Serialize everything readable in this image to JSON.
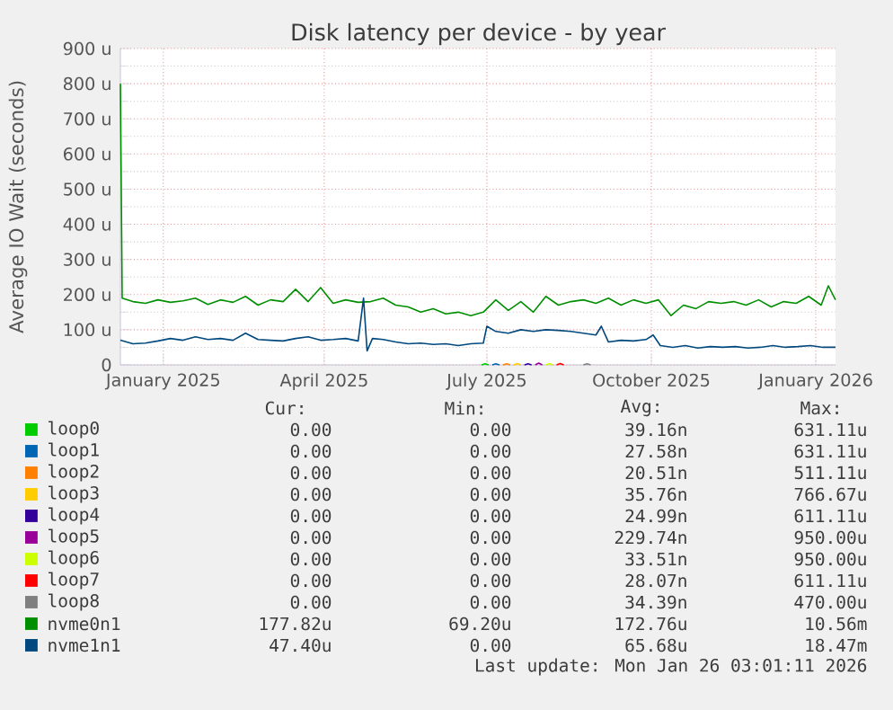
{
  "chart_data": {
    "type": "line",
    "title": "Disk latency per device - by year",
    "ylabel": "Average IO Wait (seconds)",
    "xlim": [
      "2024-12-08",
      "2026-01-12"
    ],
    "xticks": [
      {
        "value": "2025-01-01",
        "label": "January 2025"
      },
      {
        "value": "2025-04-01",
        "label": "April 2025"
      },
      {
        "value": "2025-07-01",
        "label": "July 2025"
      },
      {
        "value": "2025-10-01",
        "label": "October 2025"
      },
      {
        "value": "2026-01-01",
        "label": "January 2026"
      }
    ],
    "ylim": [
      0,
      900
    ],
    "yticks": [
      0,
      {
        "value": 100,
        "label": "100 u"
      },
      {
        "value": 200,
        "label": "200 u"
      },
      {
        "value": 300,
        "label": "300 u"
      },
      {
        "value": 400,
        "label": "400 u"
      },
      {
        "value": 500,
        "label": "500 u"
      },
      {
        "value": 600,
        "label": "600 u"
      },
      {
        "value": 700,
        "label": "700 u"
      },
      {
        "value": 800,
        "label": "800 u"
      },
      {
        "value": 900,
        "label": "900 u"
      }
    ],
    "grid": true,
    "legend": "bottom",
    "marker": "none",
    "line_style": "solid",
    "series": [
      {
        "name": "loop0",
        "color": "#00cc00",
        "x": [
          "2025-06-28",
          "2025-06-30",
          "2025-07-02"
        ],
        "values": [
          0,
          3,
          0
        ]
      },
      {
        "name": "loop1",
        "color": "#0066b3",
        "x": [
          "2025-07-04",
          "2025-07-06",
          "2025-07-08"
        ],
        "values": [
          0,
          3,
          0
        ]
      },
      {
        "name": "loop2",
        "color": "#ff8000",
        "x": [
          "2025-07-10",
          "2025-07-12",
          "2025-07-14"
        ],
        "values": [
          0,
          3,
          0
        ]
      },
      {
        "name": "loop3",
        "color": "#ffcc00",
        "x": [
          "2025-07-16",
          "2025-07-18",
          "2025-07-20"
        ],
        "values": [
          0,
          4,
          0
        ]
      },
      {
        "name": "loop4",
        "color": "#330099",
        "x": [
          "2025-07-22",
          "2025-07-24",
          "2025-07-26"
        ],
        "values": [
          0,
          3,
          0
        ]
      },
      {
        "name": "loop5",
        "color": "#990099",
        "x": [
          "2025-07-28",
          "2025-07-30",
          "2025-08-01"
        ],
        "values": [
          0,
          5,
          0
        ]
      },
      {
        "name": "loop6",
        "color": "#ccff00",
        "x": [
          "2025-08-03",
          "2025-08-05",
          "2025-08-07"
        ],
        "values": [
          0,
          4,
          0
        ]
      },
      {
        "name": "loop7",
        "color": "#ff0000",
        "x": [
          "2025-08-09",
          "2025-08-11",
          "2025-08-13"
        ],
        "values": [
          0,
          4,
          0
        ]
      },
      {
        "name": "loop8",
        "color": "#808080",
        "x": [
          "2025-08-24",
          "2025-08-26",
          "2025-08-28"
        ],
        "values": [
          0,
          3,
          0
        ]
      },
      {
        "name": "nvme0n1",
        "color": "#008f00",
        "x": [
          "2024-12-08",
          "2024-12-09",
          "2024-12-15",
          "2024-12-22",
          "2024-12-29",
          "2025-01-05",
          "2025-01-12",
          "2025-01-19",
          "2025-01-26",
          "2025-02-02",
          "2025-02-09",
          "2025-02-16",
          "2025-02-23",
          "2025-03-02",
          "2025-03-09",
          "2025-03-16",
          "2025-03-23",
          "2025-03-30",
          "2025-04-06",
          "2025-04-13",
          "2025-04-20",
          "2025-04-27",
          "2025-05-04",
          "2025-05-11",
          "2025-05-18",
          "2025-05-25",
          "2025-06-01",
          "2025-06-08",
          "2025-06-15",
          "2025-06-22",
          "2025-06-29",
          "2025-07-06",
          "2025-07-13",
          "2025-07-20",
          "2025-07-27",
          "2025-08-03",
          "2025-08-10",
          "2025-08-17",
          "2025-08-24",
          "2025-08-31",
          "2025-09-07",
          "2025-09-14",
          "2025-09-21",
          "2025-09-28",
          "2025-10-05",
          "2025-10-12",
          "2025-10-19",
          "2025-10-26",
          "2025-11-02",
          "2025-11-09",
          "2025-11-16",
          "2025-11-23",
          "2025-11-30",
          "2025-12-07",
          "2025-12-14",
          "2025-12-21",
          "2025-12-28",
          "2026-01-04",
          "2026-01-08",
          "2026-01-12"
        ],
        "values": [
          800,
          190,
          180,
          175,
          185,
          178,
          182,
          190,
          172,
          185,
          178,
          195,
          170,
          185,
          180,
          215,
          180,
          220,
          175,
          185,
          178,
          180,
          190,
          170,
          165,
          150,
          160,
          145,
          150,
          140,
          150,
          185,
          155,
          180,
          150,
          195,
          170,
          180,
          185,
          175,
          190,
          170,
          185,
          175,
          185,
          140,
          170,
          160,
          180,
          175,
          180,
          170,
          185,
          165,
          180,
          175,
          195,
          170,
          225,
          185
        ]
      },
      {
        "name": "nvme1n1",
        "color": "#00487d",
        "x": [
          "2024-12-08",
          "2024-12-15",
          "2024-12-22",
          "2024-12-29",
          "2025-01-05",
          "2025-01-12",
          "2025-01-19",
          "2025-01-26",
          "2025-02-02",
          "2025-02-09",
          "2025-02-16",
          "2025-02-23",
          "2025-03-02",
          "2025-03-09",
          "2025-03-16",
          "2025-03-23",
          "2025-03-30",
          "2025-04-06",
          "2025-04-13",
          "2025-04-20",
          "2025-04-23",
          "2025-04-25",
          "2025-04-28",
          "2025-05-04",
          "2025-05-11",
          "2025-05-18",
          "2025-05-25",
          "2025-06-01",
          "2025-06-08",
          "2025-06-15",
          "2025-06-22",
          "2025-06-29",
          "2025-07-01",
          "2025-07-06",
          "2025-07-13",
          "2025-07-20",
          "2025-07-27",
          "2025-08-03",
          "2025-08-10",
          "2025-08-17",
          "2025-08-24",
          "2025-08-31",
          "2025-09-03",
          "2025-09-07",
          "2025-09-14",
          "2025-09-21",
          "2025-09-28",
          "2025-10-02",
          "2025-10-06",
          "2025-10-13",
          "2025-10-20",
          "2025-10-27",
          "2025-11-03",
          "2025-11-10",
          "2025-11-17",
          "2025-11-24",
          "2025-12-01",
          "2025-12-08",
          "2025-12-15",
          "2025-12-22",
          "2025-12-29",
          "2026-01-05",
          "2026-01-12"
        ],
        "values": [
          70,
          60,
          62,
          68,
          75,
          70,
          80,
          72,
          75,
          70,
          90,
          72,
          70,
          68,
          75,
          80,
          70,
          72,
          75,
          68,
          190,
          40,
          75,
          72,
          65,
          60,
          62,
          58,
          60,
          55,
          60,
          62,
          110,
          95,
          90,
          100,
          95,
          100,
          98,
          95,
          90,
          85,
          110,
          65,
          70,
          68,
          72,
          85,
          55,
          50,
          55,
          48,
          52,
          50,
          52,
          48,
          50,
          55,
          50,
          52,
          55,
          50,
          50
        ]
      }
    ],
    "annotations": [
      "Cur:",
      "Min:",
      "Avg:",
      "Max:",
      "0.00",
      "0.00",
      "39.16n",
      "631.11u",
      "0.00",
      "0.00",
      "27.58n",
      "631.11u",
      "0.00",
      "0.00",
      "20.51n",
      "511.11u",
      "0.00",
      "0.00",
      "35.76n",
      "766.67u",
      "0.00",
      "0.00",
      "24.99n",
      "611.11u",
      "0.00",
      "0.00",
      "229.74n",
      "950.00u",
      "0.00",
      "0.00",
      "33.51n",
      "950.00u",
      "0.00",
      "0.00",
      "28.07n",
      "611.11u",
      "0.00",
      "0.00",
      "34.39n",
      "470.00u",
      "177.82u",
      "69.20u",
      "172.76u",
      "10.56m",
      "47.40u",
      "0.00",
      "65.68u",
      "18.47m",
      "Last update: Mon Jan 26 03:01:11 2026"
    ]
  }
}
